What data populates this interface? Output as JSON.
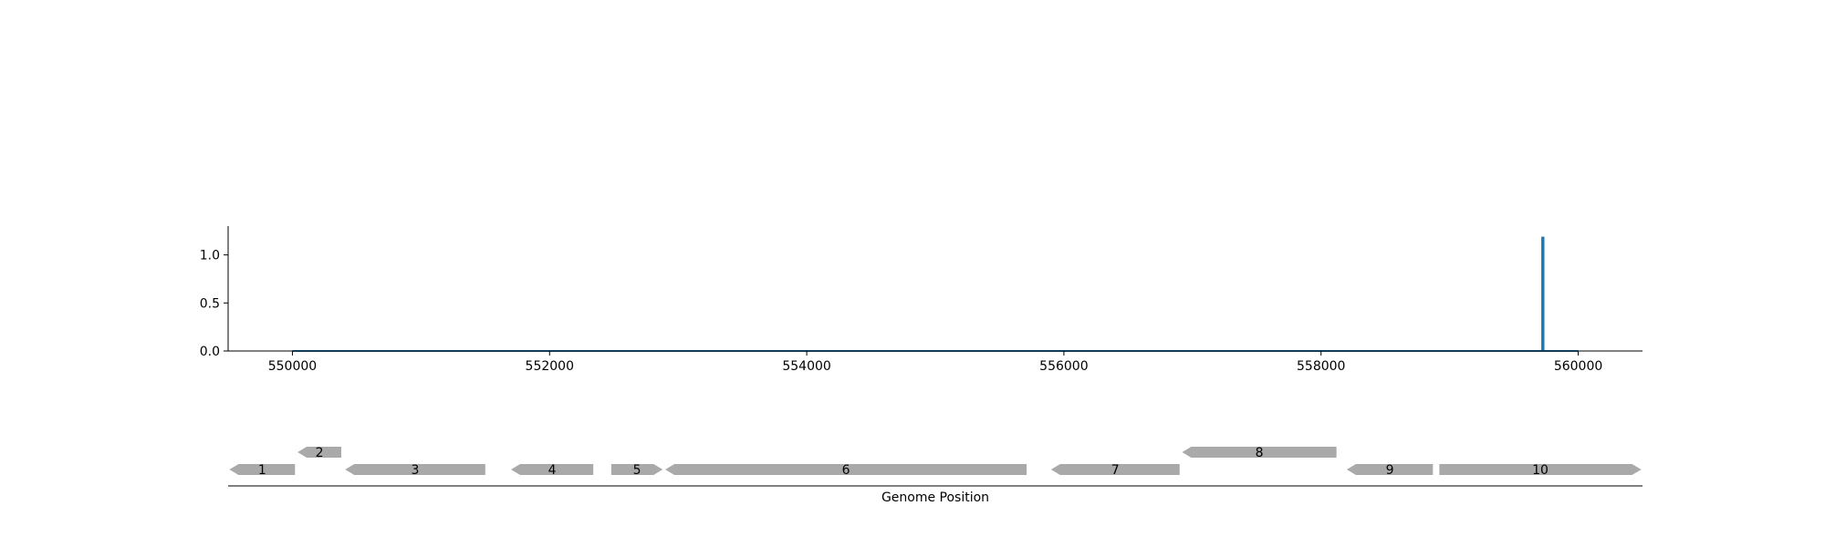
{
  "chart_data": [
    {
      "type": "line",
      "title": "",
      "xlabel": "",
      "ylabel": "",
      "xlim": [
        549500,
        560500
      ],
      "ylim": [
        0,
        1.3
      ],
      "xticks": [
        550000,
        552000,
        554000,
        556000,
        558000,
        560000
      ],
      "xtick_labels": [
        "550000",
        "552000",
        "554000",
        "556000",
        "558000",
        "560000"
      ],
      "yticks": [
        0,
        0.5,
        1
      ],
      "ytick_labels": [
        "0.0",
        "0.5",
        "1.0"
      ],
      "grid": false,
      "series": [
        {
          "x": [
            550000,
            559720,
            559720,
            559730,
            559730,
            560000
          ],
          "y": [
            0,
            0,
            1.18,
            1.18,
            0,
            0
          ],
          "color": "#1f77b4"
        }
      ]
    },
    {
      "type": "gene-track",
      "xlabel": "Genome Position",
      "xlim": [
        549500,
        560500
      ],
      "feature_color": "#a9a9a9",
      "features": [
        {
          "label": "1",
          "start": 549510,
          "end": 550020,
          "strand": -1,
          "level": 0
        },
        {
          "label": "2",
          "start": 550040,
          "end": 550380,
          "strand": -1,
          "level": 1
        },
        {
          "label": "3",
          "start": 550410,
          "end": 551500,
          "strand": -1,
          "level": 0
        },
        {
          "label": "4",
          "start": 551700,
          "end": 552340,
          "strand": -1,
          "level": 0
        },
        {
          "label": "5",
          "start": 552480,
          "end": 552880,
          "strand": 1,
          "level": 0
        },
        {
          "label": "6",
          "start": 552900,
          "end": 555710,
          "strand": -1,
          "level": 0
        },
        {
          "label": "7",
          "start": 555900,
          "end": 556900,
          "strand": -1,
          "level": 0
        },
        {
          "label": "8",
          "start": 556920,
          "end": 558120,
          "strand": -1,
          "level": 1
        },
        {
          "label": "9",
          "start": 558200,
          "end": 558870,
          "strand": -1,
          "level": 0
        },
        {
          "label": "10",
          "start": 558920,
          "end": 560490,
          "strand": 1,
          "level": 0
        }
      ]
    }
  ]
}
